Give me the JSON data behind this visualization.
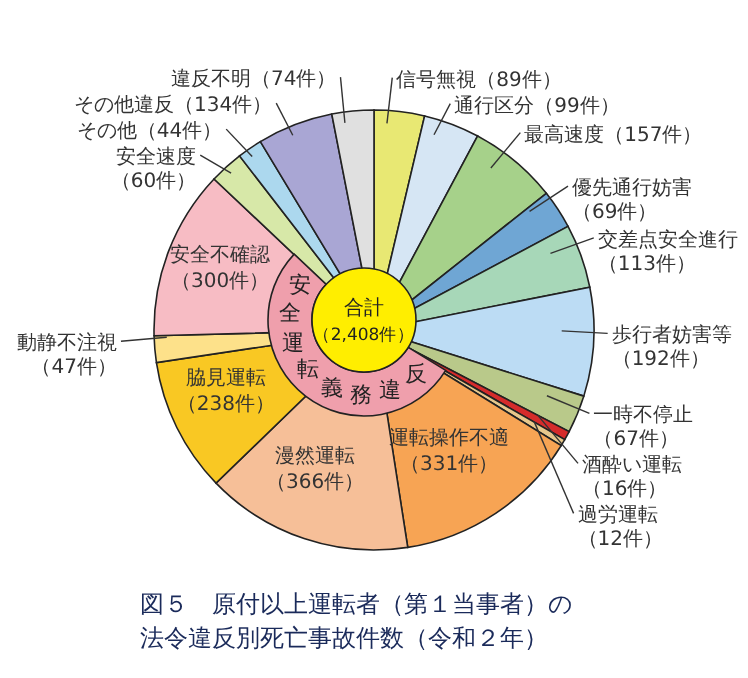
{
  "chart_data": {
    "type": "pie",
    "title": "図５　原付以上運転者（第１当事者）の法令違反別死亡事故件数（令和２年）",
    "categories": [
      "信号無視",
      "通行区分",
      "最高速度",
      "優先通行妨害",
      "交差点安全進行",
      "歩行者妨害等",
      "一時不停止",
      "酒酔い運転",
      "過労運転",
      "運転操作不適",
      "漫然運転",
      "脇見運転",
      "動静不注視",
      "安全不確認",
      "安全速度",
      "その他",
      "その他違反",
      "違反不明"
    ],
    "values": [
      89,
      99,
      157,
      69,
      113,
      192,
      67,
      16,
      12,
      331,
      366,
      238,
      47,
      300,
      60,
      44,
      134,
      74
    ],
    "value_labels": [
      "（89件）",
      "（99件）",
      "（157件）",
      "（69件）",
      "（113件）",
      "（192件）",
      "（67件）",
      "（16件）",
      "（12件）",
      "（331件）",
      "（366件）",
      "（238件）",
      "（47件）",
      "（300件）",
      "（60件）",
      "（44件）",
      "（134件）",
      "（74件）"
    ],
    "colors": [
      "#e8e873",
      "#d6e6f4",
      "#a6d18a",
      "#6fa6d4",
      "#a7d7b8",
      "#bcdcf4",
      "#b9c98a",
      "#d52b2b",
      "#e8c88c",
      "#f7a454",
      "#f6bf98",
      "#f9c823",
      "#fde18a",
      "#f7bcc4",
      "#d7e8a8",
      "#acd8ee",
      "#a9a6d4",
      "#e0e0e0"
    ],
    "annotations": [
      "合計",
      "（2,408件）",
      "安全運転義務違反"
    ]
  }
}
